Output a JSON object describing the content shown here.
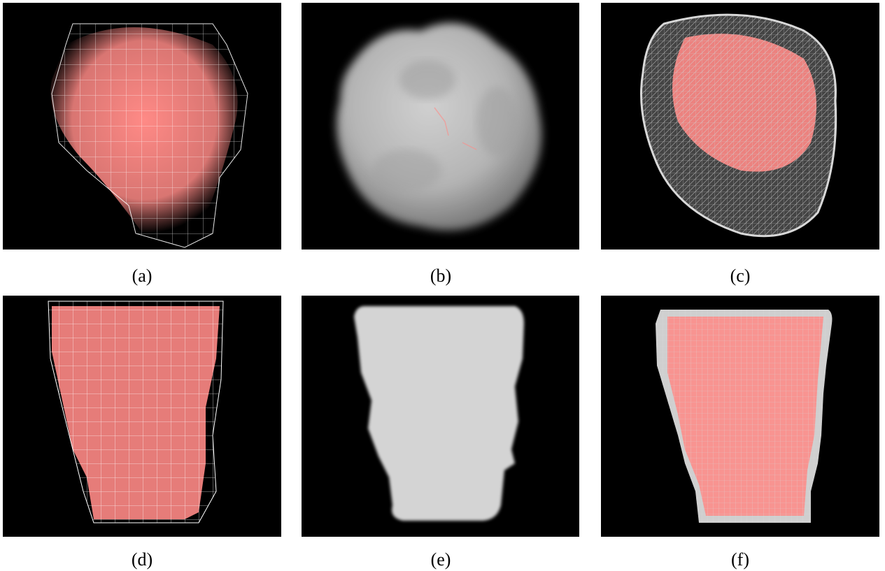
{
  "figure": {
    "panels": [
      {
        "label": "(a)",
        "depicts": "point-cloud-with-coarse-wireframe-grid"
      },
      {
        "label": "(b)",
        "depicts": "smooth-blobby-surface"
      },
      {
        "label": "(c)",
        "depicts": "point-cloud-with-surface-mesh-wireframe"
      },
      {
        "label": "(d)",
        "depicts": "point-cloud-with-coarse-wireframe-grid"
      },
      {
        "label": "(e)",
        "depicts": "smooth-flat-surface"
      },
      {
        "label": "(f)",
        "depicts": "point-cloud-with-surface-mesh-wireframe"
      }
    ],
    "colors": {
      "background": "#000000",
      "points": "#ff8a86",
      "wire": "#ffffff",
      "surface": "#c8c8c8"
    }
  }
}
